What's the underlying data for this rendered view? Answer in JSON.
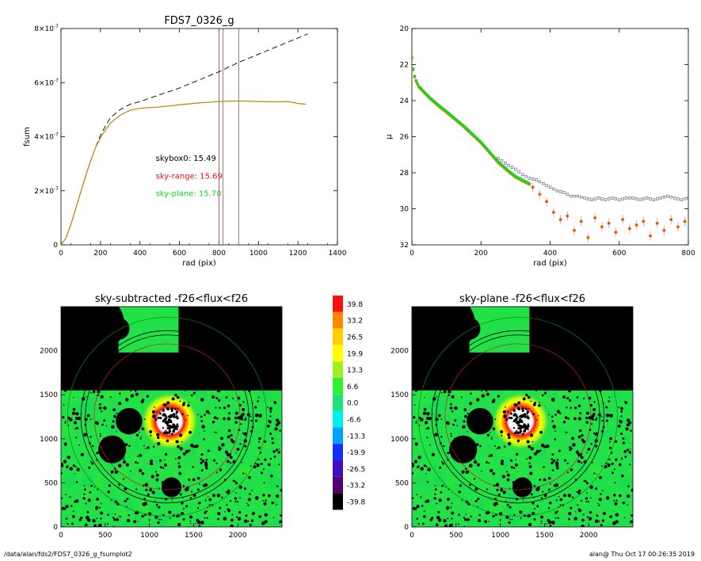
{
  "footer": {
    "left": "/data/alan/fds2/FDS7_0326_g_fsumplot2",
    "right": "alan@  Thu Oct 17 00:26:35 2019"
  },
  "colors": {
    "curve": "#b8860b",
    "skyrange": "#e8101a",
    "skyplane": "#1ed21e",
    "sky_green": "#22e048",
    "profile_points": "#ee7f00",
    "vline_red": "#d23232"
  },
  "chart_data": [
    {
      "id": "fsum",
      "type": "line",
      "title": "FDS7_0326_g",
      "xlabel": "rad (pix)",
      "ylabel": "fsum",
      "xlim": [
        0,
        1400
      ],
      "ylim": [
        0,
        8e-07
      ],
      "xticks": [
        "0",
        "200",
        "400",
        "600",
        "800",
        "1000",
        "1200",
        "1400"
      ],
      "yticks": [
        {
          "value": 0,
          "label": "0"
        },
        {
          "value": 2e-07,
          "base": "2×10",
          "exp": "-7"
        },
        {
          "value": 4e-07,
          "base": "4×10",
          "exp": "-7"
        },
        {
          "value": 6e-07,
          "base": "6×10",
          "exp": "-7"
        },
        {
          "value": 8e-07,
          "base": "8×10",
          "exp": "-7"
        }
      ],
      "series": [
        {
          "style": "dashed",
          "x": [
            0,
            25,
            50,
            75,
            100,
            125,
            150,
            175,
            200,
            225,
            250,
            300,
            350,
            400,
            500,
            600,
            700,
            800,
            900,
            1000,
            1100,
            1200,
            1250
          ],
          "y": [
            0,
            2.5e-08,
            7.5e-08,
            1.35e-07,
            1.95e-07,
            2.55e-07,
            3.1e-07,
            3.6e-07,
            4.05e-07,
            4.4e-07,
            4.7e-07,
            5e-07,
            5.2e-07,
            5.3e-07,
            5.55e-07,
            5.8e-07,
            6.1e-07,
            6.4e-07,
            6.75e-07,
            7.05e-07,
            7.35e-07,
            7.65e-07,
            7.8e-07
          ]
        },
        {
          "style": "solid",
          "x": [
            0,
            25,
            50,
            75,
            100,
            125,
            150,
            175,
            200,
            225,
            250,
            300,
            350,
            400,
            500,
            600,
            700,
            800,
            900,
            1000,
            1100,
            1150,
            1200,
            1240
          ],
          "y": [
            0,
            2.5e-08,
            7.5e-08,
            1.35e-07,
            1.95e-07,
            2.55e-07,
            3.1e-07,
            3.6e-07,
            3.95e-07,
            4.25e-07,
            4.5e-07,
            4.8e-07,
            4.98e-07,
            5.05e-07,
            5.1e-07,
            5.18e-07,
            5.25e-07,
            5.3e-07,
            5.32e-07,
            5.3e-07,
            5.29e-07,
            5.3e-07,
            5.23e-07,
            5.2e-07
          ]
        }
      ],
      "vlines": [
        {
          "x": 800,
          "color": "#d23232"
        },
        {
          "x": 820,
          "color": "#666666"
        },
        {
          "x": 900,
          "color": "#666666"
        }
      ],
      "annotations": [
        {
          "text": "skybox0: 15.49",
          "color": "#000000",
          "x": 480,
          "y": 3.1e-07
        },
        {
          "text": "sky-range: 15.69",
          "color": "#e8101a",
          "x": 480,
          "y": 2.45e-07
        },
        {
          "text": "sky-plane: 15.70",
          "color": "#1ed21e",
          "x": 480,
          "y": 1.8e-07
        }
      ]
    },
    {
      "id": "profile",
      "type": "scatter",
      "title": "",
      "xlabel": "rad (pix)",
      "ylabel": "μ",
      "xlim": [
        0,
        800
      ],
      "ylim": [
        32,
        20
      ],
      "xticks": [
        "0",
        "200",
        "400",
        "600",
        "800"
      ],
      "yticks": [
        "20",
        "22",
        "24",
        "26",
        "28",
        "30",
        "32"
      ],
      "series": [
        {
          "marker": "square",
          "color": "#555555",
          "x": [
            0,
            5,
            10,
            20,
            30,
            50,
            80,
            100,
            150,
            200,
            250,
            280,
            300,
            320,
            340,
            360,
            380,
            400,
            420,
            440,
            460,
            480,
            500,
            520,
            540,
            560,
            580,
            600,
            620,
            640,
            660,
            680,
            700,
            720,
            740,
            760,
            780,
            800
          ],
          "y": [
            21.6,
            22.4,
            22.8,
            23.2,
            23.4,
            23.7,
            24.2,
            24.5,
            25.3,
            26.2,
            27.2,
            27.6,
            27.8,
            28.1,
            28.3,
            28.4,
            28.6,
            28.8,
            29.0,
            29.1,
            29.3,
            29.3,
            29.4,
            29.5,
            29.4,
            29.5,
            29.4,
            29.5,
            29.4,
            29.4,
            29.5,
            29.4,
            29.5,
            29.4,
            29.3,
            29.4,
            29.5,
            29.4
          ]
        },
        {
          "marker": "circle",
          "color": "#1ed21e",
          "x": [
            0,
            5,
            10,
            20,
            30,
            50,
            80,
            100,
            150,
            200,
            250,
            280,
            300,
            320,
            340
          ],
          "y": [
            21.6,
            22.4,
            22.8,
            23.2,
            23.4,
            23.8,
            24.3,
            24.6,
            25.4,
            26.3,
            27.4,
            27.9,
            28.2,
            28.4,
            28.6
          ]
        },
        {
          "marker": "circle",
          "color": "#ee7f00",
          "x": [
            350,
            370,
            390,
            410,
            430,
            450,
            470,
            490,
            510,
            530,
            550,
            570,
            590,
            610,
            630,
            650,
            670,
            690,
            710,
            730,
            750,
            770,
            790
          ],
          "y": [
            28.8,
            29.2,
            29.6,
            30.2,
            30.6,
            30.4,
            31.2,
            30.7,
            31.6,
            30.5,
            31.0,
            30.8,
            31.3,
            30.6,
            31.1,
            30.9,
            30.7,
            31.5,
            30.8,
            31.2,
            30.6,
            31.0,
            30.7
          ]
        }
      ]
    },
    {
      "id": "img-sky-subtracted",
      "type": "heatmap",
      "title": "sky-subtracted -f26<flux<f26",
      "xlim": [
        0,
        2500
      ],
      "ylim": [
        0,
        2500
      ],
      "xticks": [
        "0",
        "500",
        "1000",
        "1500",
        "2000"
      ],
      "yticks": [
        "0",
        "500",
        "1000",
        "1500",
        "2000"
      ]
    },
    {
      "id": "img-sky-plane",
      "type": "heatmap",
      "title": "sky-plane -f26<flux<f26",
      "xlim": [
        0,
        2500
      ],
      "ylim": [
        0,
        2500
      ],
      "xticks": [
        "0",
        "500",
        "1000",
        "1500",
        "2000"
      ],
      "yticks": [
        "0",
        "500",
        "1000",
        "1500",
        "2000"
      ]
    },
    {
      "id": "colorbar",
      "type": "colorbar",
      "levels": [
        {
          "label": "39.8",
          "color": "#ff1010"
        },
        {
          "label": "33.2",
          "color": "#ff8800"
        },
        {
          "label": "26.5",
          "color": "#ffd000"
        },
        {
          "label": "19.9",
          "color": "#ffff00"
        },
        {
          "label": "13.3",
          "color": "#a0f020"
        },
        {
          "label": "6.6",
          "color": "#30f030"
        },
        {
          "label": "0.0",
          "color": "#20e078"
        },
        {
          "label": "-6.6",
          "color": "#00f0f0"
        },
        {
          "label": "-13.3",
          "color": "#00a0ff"
        },
        {
          "label": "-19.9",
          "color": "#1030ff"
        },
        {
          "label": "-26.5",
          "color": "#4010c0"
        },
        {
          "label": "-33.2",
          "color": "#500070"
        },
        {
          "label": "-39.8",
          "color": "#000000"
        }
      ]
    }
  ]
}
